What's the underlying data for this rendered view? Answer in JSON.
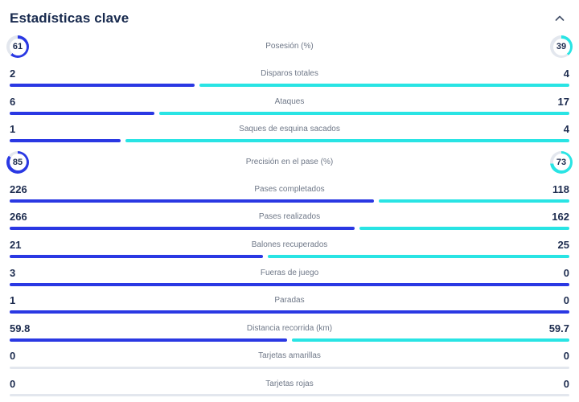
{
  "header": {
    "title": "Estadísticas clave",
    "collapse_icon": "chevron-up-icon"
  },
  "colors": {
    "home": "#2a38e3",
    "away": "#29e4e4",
    "track": "#e3e7ee"
  },
  "rows": [
    {
      "display": "ring",
      "label": "Posesión (%)",
      "home": 61,
      "away": 39
    },
    {
      "display": "bar",
      "label": "Disparos totales",
      "home": 2,
      "away": 4
    },
    {
      "display": "bar",
      "label": "Ataques",
      "home": 6,
      "away": 17
    },
    {
      "display": "bar",
      "label": "Saques de esquina sacados",
      "home": 1,
      "away": 4
    },
    {
      "display": "ring",
      "label": "Precisión en el pase (%)",
      "home": 85,
      "away": 73
    },
    {
      "display": "bar",
      "label": "Pases completados",
      "home": 226,
      "away": 118
    },
    {
      "display": "bar",
      "label": "Pases realizados",
      "home": 266,
      "away": 162
    },
    {
      "display": "bar",
      "label": "Balones recuperados",
      "home": 21,
      "away": 25
    },
    {
      "display": "bar",
      "label": "Fueras de juego",
      "home": 3,
      "away": 0
    },
    {
      "display": "bar",
      "label": "Paradas",
      "home": 1,
      "away": 0
    },
    {
      "display": "bar",
      "label": "Distancia recorrida (km)",
      "home": 59.8,
      "away": 59.7
    },
    {
      "display": "bar",
      "label": "Tarjetas amarillas",
      "home": 0,
      "away": 0
    },
    {
      "display": "bar",
      "label": "Tarjetas rojas",
      "home": 0,
      "away": 0
    }
  ]
}
